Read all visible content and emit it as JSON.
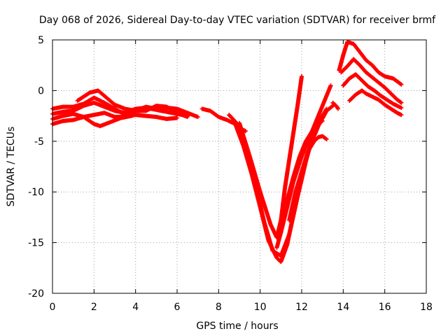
{
  "chart_data": {
    "type": "scatter",
    "title": "Day 068 of 2026, Sidereal Day-to-day VTEC variation (SDTVAR) for receiver brmf",
    "xlabel": "GPS time / hours",
    "ylabel": "SDTVAR / TECUs",
    "xlim": [
      0,
      18
    ],
    "ylim": [
      -20,
      5
    ],
    "xticks": [
      0,
      2,
      4,
      6,
      8,
      10,
      12,
      14,
      16,
      18
    ],
    "yticks": [
      -20,
      -15,
      -10,
      -5,
      0,
      5
    ],
    "grid": true,
    "marker": "+",
    "color": "#ff0000",
    "series": [
      {
        "name": "track-1",
        "x": [
          0.0,
          0.5,
          1.0,
          1.5,
          2.0,
          2.5,
          3.0,
          3.5,
          4.0,
          4.5,
          5.0,
          5.5,
          6.0,
          6.5,
          7.0
        ],
        "y": [
          -1.8,
          -1.6,
          -1.6,
          -1.3,
          -0.7,
          -1.2,
          -1.8,
          -2.4,
          -2.0,
          -1.6,
          -1.8,
          -1.7,
          -1.8,
          -2.2,
          -2.6
        ]
      },
      {
        "name": "track-2",
        "x": [
          0.0,
          0.5,
          1.0,
          1.5,
          2.0,
          2.5,
          3.0,
          3.5,
          4.0,
          4.5,
          5.0,
          5.5,
          6.0,
          6.5
        ],
        "y": [
          -2.3,
          -2.1,
          -2.0,
          -1.5,
          -1.2,
          -1.6,
          -2.0,
          -2.2,
          -1.8,
          -1.7,
          -1.9,
          -2.1,
          -2.3,
          -2.5
        ]
      },
      {
        "name": "track-3",
        "x": [
          0.0,
          0.5,
          1.0,
          1.5,
          2.0,
          2.5,
          3.0,
          3.5,
          4.0,
          4.5,
          5.0,
          5.5,
          6.0
        ],
        "y": [
          -3.3,
          -3.0,
          -2.9,
          -2.6,
          -2.4,
          -2.2,
          -2.6,
          -2.6,
          -2.4,
          -2.5,
          -2.6,
          -2.8,
          -2.7
        ]
      },
      {
        "name": "track-4",
        "x": [
          0.0,
          0.5,
          1.0,
          1.5,
          2.0,
          2.3,
          2.8,
          3.3,
          3.8
        ],
        "y": [
          -2.8,
          -2.5,
          -2.3,
          -2.6,
          -3.3,
          -3.5,
          -3.1,
          -2.7,
          -2.5
        ]
      },
      {
        "name": "track-5",
        "x": [
          1.2,
          1.5,
          1.8,
          2.2,
          2.6,
          3.0,
          3.5,
          4.0,
          4.5,
          5.0,
          5.5,
          6.0,
          6.5
        ],
        "y": [
          -1.0,
          -0.6,
          -0.2,
          0.0,
          -0.7,
          -1.4,
          -1.8,
          -2.0,
          -2.0,
          -1.5,
          -1.6,
          -2.2,
          -2.6
        ]
      },
      {
        "name": "track-6",
        "x": [
          7.2,
          7.6,
          8.0,
          8.4,
          8.8,
          9.2,
          9.6,
          10.0,
          10.4,
          10.8,
          11.0,
          11.3,
          11.6,
          12.0,
          12.4,
          12.8,
          13.2,
          13.5
        ],
        "y": [
          -1.8,
          -2.0,
          -2.6,
          -2.9,
          -3.3,
          -5.5,
          -8.3,
          -11.5,
          -14.8,
          -16.5,
          -16.9,
          -15.2,
          -12.2,
          -8.0,
          -5.5,
          -3.5,
          -2.0,
          -1.5
        ]
      },
      {
        "name": "track-7",
        "x": [
          8.5,
          9.0,
          9.4,
          9.8,
          10.2,
          10.6,
          11.0,
          11.4,
          11.8,
          12.2,
          12.6,
          13.0,
          13.2
        ],
        "y": [
          -2.4,
          -3.5,
          -6.0,
          -9.5,
          -13.0,
          -15.8,
          -16.3,
          -14.2,
          -10.5,
          -7.0,
          -4.0,
          -2.5,
          -1.8
        ]
      },
      {
        "name": "track-8",
        "x": [
          9.0,
          9.5,
          10.0,
          10.5,
          10.8,
          11.0,
          11.2,
          11.5,
          11.8,
          12.0
        ],
        "y": [
          -3.2,
          -6.5,
          -10.0,
          -13.2,
          -14.5,
          -12.8,
          -9.5,
          -5.5,
          -1.5,
          1.4
        ]
      },
      {
        "name": "track-9",
        "x": [
          10.8,
          11.0,
          11.3,
          11.6,
          12.0,
          12.4,
          12.8,
          13.2,
          13.4
        ],
        "y": [
          -15.5,
          -14.0,
          -11.5,
          -9.0,
          -6.5,
          -4.5,
          -2.5,
          -0.5,
          0.5
        ]
      },
      {
        "name": "track-10",
        "x": [
          11.0,
          11.3,
          11.6,
          11.9,
          12.2,
          12.5,
          12.8,
          13.0
        ],
        "y": [
          -13.5,
          -10.8,
          -8.5,
          -6.5,
          -5.0,
          -4.0,
          -3.2,
          -3.0
        ]
      },
      {
        "name": "track-11",
        "x": [
          11.4,
          11.7,
          12.0,
          12.3,
          12.6,
          12.8,
          13.0,
          13.2
        ],
        "y": [
          -12.8,
          -10.0,
          -8.0,
          -6.0,
          -5.0,
          -4.6,
          -4.5,
          -4.8
        ]
      },
      {
        "name": "track-12",
        "x": [
          8.9,
          9.1,
          9.3
        ],
        "y": [
          -3.6,
          -3.8,
          -4.0
        ]
      },
      {
        "name": "track-13",
        "x": [
          13.5,
          13.6,
          13.7,
          13.75
        ],
        "y": [
          -1.2,
          -1.4,
          -1.6,
          -1.8
        ]
      },
      {
        "name": "track-14",
        "x": [
          13.8,
          14.0,
          14.2,
          14.5,
          14.8,
          15.1,
          15.4,
          15.7,
          16.0,
          16.4,
          16.8
        ],
        "y": [
          2.0,
          3.5,
          4.8,
          4.6,
          3.8,
          3.0,
          2.5,
          1.8,
          1.4,
          1.2,
          0.6
        ]
      },
      {
        "name": "track-15",
        "x": [
          13.9,
          14.2,
          14.5,
          14.8,
          15.1,
          15.4,
          15.7,
          16.0,
          16.3,
          16.6,
          16.8
        ],
        "y": [
          1.8,
          2.4,
          3.1,
          2.5,
          1.8,
          1.3,
          0.8,
          0.3,
          -0.3,
          -0.9,
          -1.2
        ]
      },
      {
        "name": "track-16",
        "x": [
          14.0,
          14.3,
          14.6,
          14.9,
          15.2,
          15.5,
          15.8,
          16.1,
          16.4,
          16.7,
          16.8
        ],
        "y": [
          0.5,
          1.2,
          1.6,
          1.0,
          0.4,
          0.0,
          -0.5,
          -0.9,
          -1.3,
          -1.6,
          -1.7
        ]
      },
      {
        "name": "track-17",
        "x": [
          14.3,
          14.6,
          14.9,
          15.1,
          15.4,
          15.7,
          16.0,
          16.3,
          16.6,
          16.8
        ],
        "y": [
          -1.0,
          -0.4,
          0.0,
          -0.3,
          -0.6,
          -0.9,
          -1.4,
          -1.8,
          -2.2,
          -2.4
        ]
      }
    ]
  }
}
